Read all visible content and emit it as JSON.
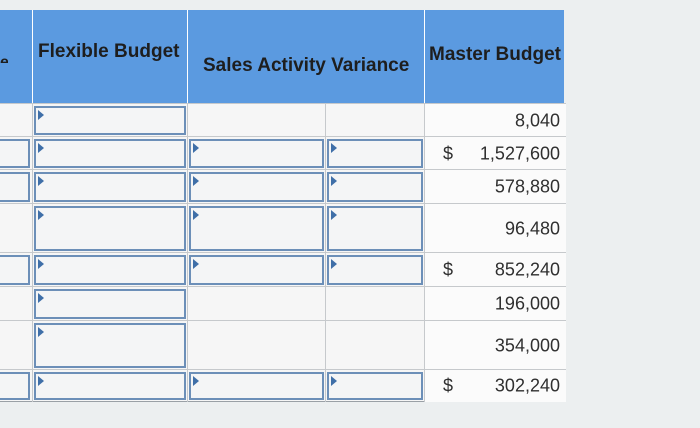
{
  "headers": {
    "row_label_fragment": "e",
    "flexible_budget": "Flexible Budget",
    "sales_activity_variance": "Sales Activity Variance",
    "master_budget": "Master Budget"
  },
  "rows": [
    {
      "dollar": "",
      "master": "8,040"
    },
    {
      "dollar": "$",
      "master": "1,527,600"
    },
    {
      "dollar": "",
      "master": "578,880"
    },
    {
      "dollar": "",
      "master": "96,480"
    },
    {
      "dollar": "$",
      "master": "852,240"
    },
    {
      "dollar": "",
      "master": "196,000"
    },
    {
      "dollar": "",
      "master": "354,000"
    },
    {
      "dollar": "$",
      "master": "302,240"
    }
  ],
  "colors": {
    "header_blue": "#5b9ae0",
    "input_border": "#6c8fb8",
    "marker": "#3f6fa8"
  }
}
